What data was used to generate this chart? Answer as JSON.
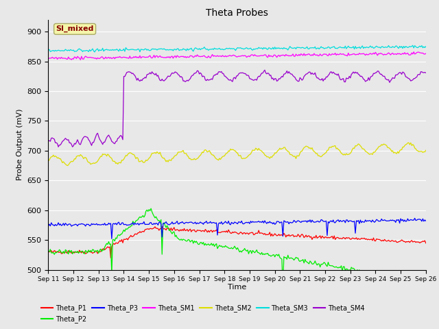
{
  "title": "Theta Probes",
  "xlabel": "Time",
  "ylabel": "Probe Output (mV)",
  "ylim": [
    500,
    920
  ],
  "yticks": [
    500,
    550,
    600,
    650,
    700,
    750,
    800,
    850,
    900
  ],
  "x_tick_labels": [
    "Sep 11",
    "Sep 12",
    "Sep 13",
    "Sep 14",
    "Sep 15",
    "Sep 16",
    "Sep 17",
    "Sep 18",
    "Sep 19",
    "Sep 20",
    "Sep 21",
    "Sep 22",
    "Sep 23",
    "Sep 24",
    "Sep 25",
    "Sep 26"
  ],
  "colors": {
    "Theta_P1": "#ff0000",
    "Theta_P2": "#00ee00",
    "Theta_P3": "#0000ff",
    "Theta_SM1": "#ff00ff",
    "Theta_SM2": "#dddd00",
    "Theta_SM3": "#00dddd",
    "Theta_SM4": "#9900cc"
  },
  "annotation_text": "SI_mixed",
  "background_color": "#e8e8e8",
  "fig_facecolor": "#e8e8e8"
}
